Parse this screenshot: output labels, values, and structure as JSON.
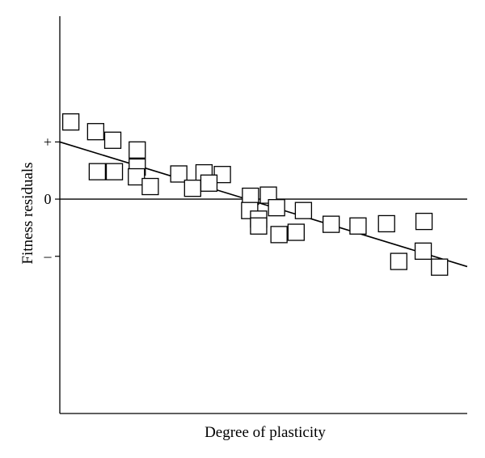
{
  "chart_data": {
    "type": "scatter",
    "xlabel": "Degree of plasticity",
    "ylabel": "Fitness residuals",
    "xlim": [
      0,
      10
    ],
    "ylim": [
      -3.75,
      3.2
    ],
    "yticks": [
      {
        "value": 1,
        "label": "+"
      },
      {
        "value": 0,
        "label": "0"
      },
      {
        "value": -1,
        "label": "–"
      }
    ],
    "x_tick_labels": false,
    "zero_line": true,
    "fit_line": {
      "x": [
        0,
        10
      ],
      "y": [
        1.0,
        -1.18
      ]
    },
    "points": [
      {
        "x": 0.27,
        "y": 1.35
      },
      {
        "x": 0.88,
        "y": 1.18
      },
      {
        "x": 1.3,
        "y": 1.03
      },
      {
        "x": 1.9,
        "y": 0.86
      },
      {
        "x": 0.92,
        "y": 0.48
      },
      {
        "x": 1.34,
        "y": 0.48
      },
      {
        "x": 1.9,
        "y": 0.56
      },
      {
        "x": 1.88,
        "y": 0.39
      },
      {
        "x": 2.22,
        "y": 0.22
      },
      {
        "x": 2.92,
        "y": 0.44
      },
      {
        "x": 3.54,
        "y": 0.46
      },
      {
        "x": 3.99,
        "y": 0.43
      },
      {
        "x": 3.26,
        "y": 0.19
      },
      {
        "x": 3.66,
        "y": 0.28
      },
      {
        "x": 4.68,
        "y": 0.05
      },
      {
        "x": 5.12,
        "y": 0.07
      },
      {
        "x": 4.66,
        "y": -0.2
      },
      {
        "x": 5.32,
        "y": -0.15
      },
      {
        "x": 5.98,
        "y": -0.2
      },
      {
        "x": 4.88,
        "y": -0.35
      },
      {
        "x": 4.88,
        "y": -0.47
      },
      {
        "x": 5.38,
        "y": -0.62
      },
      {
        "x": 5.8,
        "y": -0.58
      },
      {
        "x": 6.66,
        "y": -0.44
      },
      {
        "x": 7.32,
        "y": -0.47
      },
      {
        "x": 8.02,
        "y": -0.43
      },
      {
        "x": 8.94,
        "y": -0.39
      },
      {
        "x": 8.32,
        "y": -1.09
      },
      {
        "x": 8.92,
        "y": -0.91
      },
      {
        "x": 9.32,
        "y": -1.19
      }
    ]
  }
}
